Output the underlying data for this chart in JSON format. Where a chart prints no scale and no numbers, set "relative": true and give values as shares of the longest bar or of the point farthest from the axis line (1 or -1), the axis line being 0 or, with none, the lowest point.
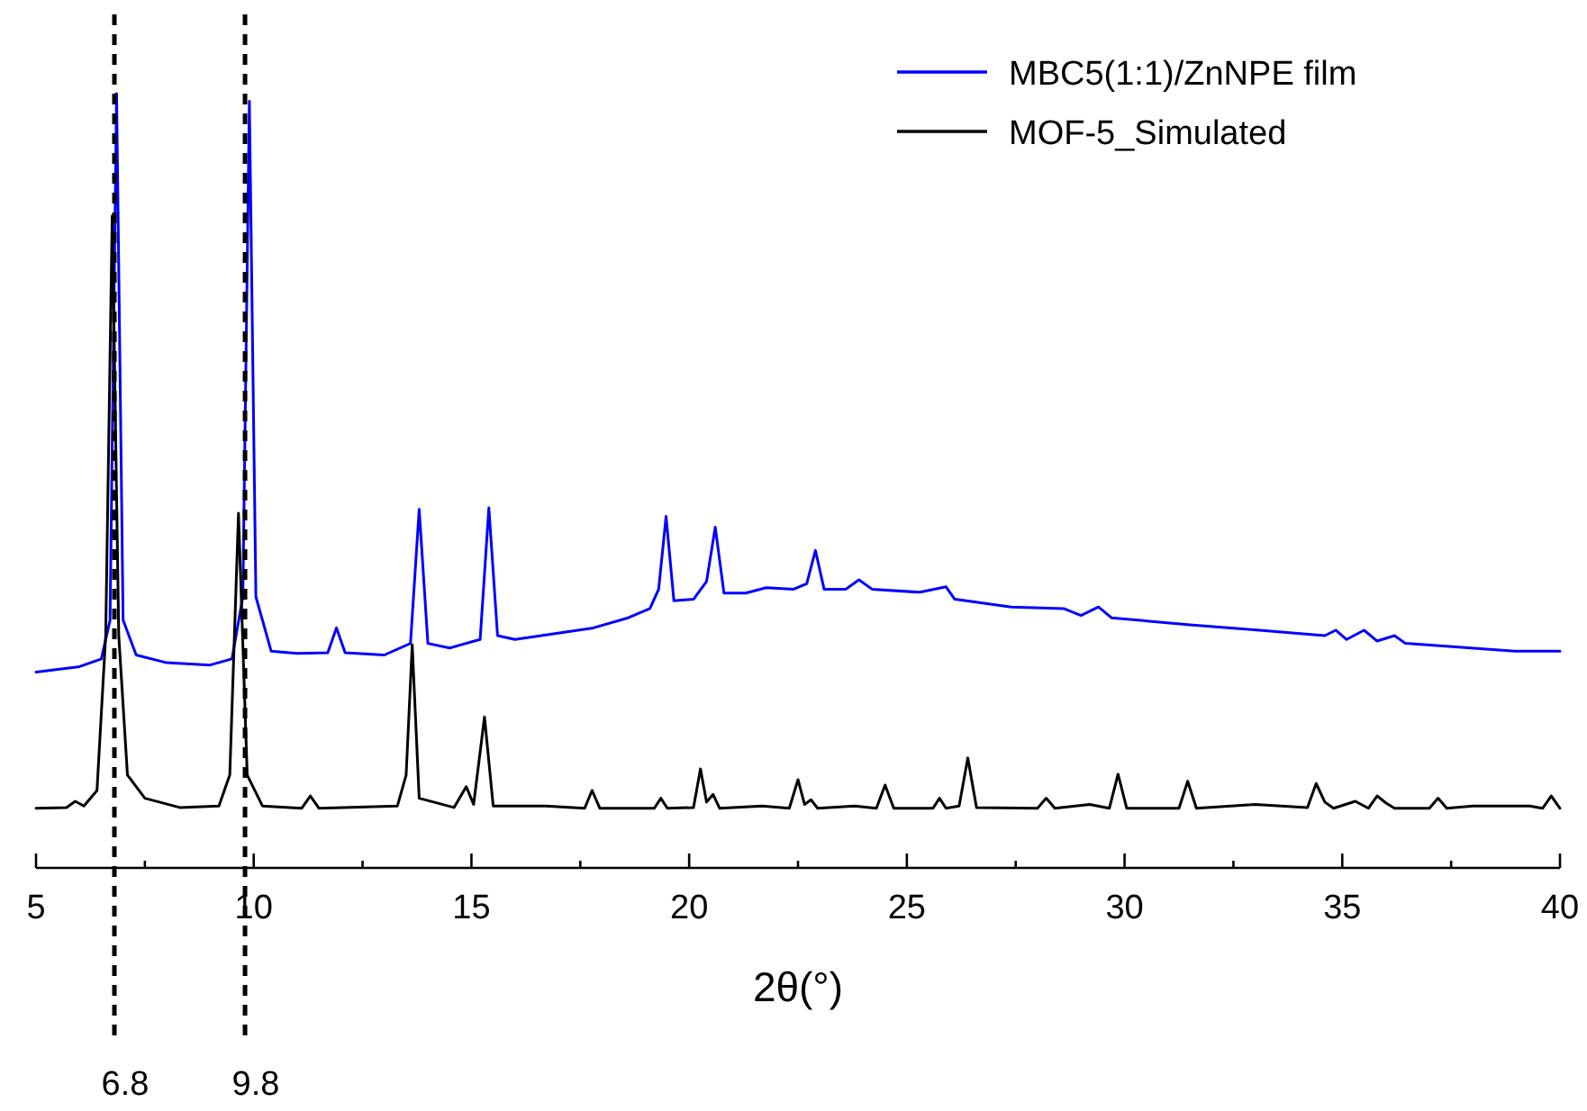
{
  "chart_data": {
    "type": "line",
    "relative": true,
    "xlabel": "2θ(°)",
    "xlim": [
      5,
      40
    ],
    "xticks": [
      5,
      {
        "value": 7.5,
        "label": null
      },
      10,
      {
        "value": 12.5,
        "label": null
      },
      15,
      {
        "value": 17.5,
        "label": null
      },
      20,
      {
        "value": 22.5,
        "label": null
      },
      25,
      {
        "value": 27.5,
        "label": null
      },
      30,
      {
        "value": 32.5,
        "label": null
      },
      35,
      {
        "value": 37.5,
        "label": null
      },
      40
    ],
    "legend": "top right",
    "grid": false,
    "line_style": "solid",
    "ref_lines": [
      {
        "axis": "x",
        "value": 6.8,
        "label": "6.8",
        "color": "#000000",
        "line_style": "dashed"
      },
      {
        "axis": "x",
        "value": 9.8,
        "label": "9.8",
        "color": "#000000",
        "line_style": "dashed"
      }
    ],
    "series": [
      {
        "name": "MBC5(1:1)/ZnNPE film",
        "color": "#0000ff",
        "x": [
          5,
          6,
          6.5,
          6.7,
          6.85,
          7.0,
          7.3,
          8,
          9,
          9.5,
          9.75,
          9.9,
          10.05,
          10.4,
          11,
          11.7,
          11.9,
          12.1,
          13,
          13.6,
          13.8,
          14.0,
          14.5,
          15.2,
          15.4,
          15.6,
          16,
          16.6,
          17.8,
          18.6,
          19.1,
          19.3,
          19.47,
          19.65,
          20.1,
          20.4,
          20.6,
          20.8,
          21.3,
          21.77,
          22.4,
          22.7,
          22.9,
          23.1,
          23.6,
          23.9,
          24.2,
          25.3,
          25.9,
          26.1,
          27.4,
          28.6,
          29.0,
          29.4,
          29.7,
          31.5,
          33.1,
          34.6,
          34.85,
          35.1,
          35.5,
          35.8,
          36.2,
          36.45,
          38.96,
          40
        ],
        "values": [
          0.253,
          0.26,
          0.27,
          0.32,
          1.0,
          0.32,
          0.275,
          0.265,
          0.262,
          0.27,
          0.35,
          0.99,
          0.35,
          0.28,
          0.277,
          0.278,
          0.31,
          0.278,
          0.275,
          0.29,
          0.463,
          0.29,
          0.284,
          0.295,
          0.465,
          0.3,
          0.295,
          0.3,
          0.31,
          0.323,
          0.335,
          0.36,
          0.454,
          0.345,
          0.347,
          0.37,
          0.44,
          0.355,
          0.355,
          0.362,
          0.36,
          0.367,
          0.41,
          0.36,
          0.36,
          0.372,
          0.36,
          0.356,
          0.363,
          0.347,
          0.337,
          0.335,
          0.326,
          0.337,
          0.323,
          0.314,
          0.307,
          0.3,
          0.307,
          0.295,
          0.307,
          0.293,
          0.3,
          0.29,
          0.28,
          0.28
        ]
      },
      {
        "name": "MOF-5_Simulated",
        "color": "#000000",
        "x": [
          5,
          5.7,
          5.9,
          6.1,
          6.4,
          6.6,
          6.75,
          6.9,
          7.1,
          7.5,
          8.3,
          9.2,
          9.45,
          9.65,
          9.85,
          10.2,
          11.1,
          11.3,
          11.5,
          13.3,
          13.5,
          13.64,
          13.8,
          14.6,
          14.88,
          15.05,
          15.3,
          15.5,
          16.7,
          17.6,
          17.77,
          17.95,
          19.2,
          19.35,
          19.5,
          20.1,
          20.26,
          20.4,
          20.55,
          20.7,
          21.68,
          22.3,
          22.5,
          22.65,
          22.8,
          22.95,
          23.8,
          24.3,
          24.5,
          24.7,
          25.6,
          25.75,
          25.9,
          26.2,
          26.4,
          26.6,
          28.0,
          28.2,
          28.4,
          29.2,
          29.65,
          29.85,
          30.05,
          31.25,
          31.45,
          31.65,
          33,
          34.2,
          34.4,
          34.6,
          34.8,
          35.3,
          35.6,
          35.8,
          36.0,
          36.2,
          37.0,
          37.2,
          37.4,
          38,
          38.5,
          39.3,
          39.6,
          39.8,
          40
        ],
        "values": [
          0.077,
          0.078,
          0.086,
          0.08,
          0.1,
          0.3,
          0.842,
          0.3,
          0.12,
          0.09,
          0.078,
          0.08,
          0.12,
          0.458,
          0.12,
          0.08,
          0.077,
          0.093,
          0.077,
          0.08,
          0.12,
          0.288,
          0.09,
          0.078,
          0.105,
          0.082,
          0.195,
          0.08,
          0.08,
          0.077,
          0.1,
          0.077,
          0.077,
          0.09,
          0.077,
          0.078,
          0.128,
          0.085,
          0.095,
          0.077,
          0.08,
          0.077,
          0.114,
          0.082,
          0.088,
          0.077,
          0.08,
          0.077,
          0.107,
          0.077,
          0.077,
          0.09,
          0.077,
          0.08,
          0.142,
          0.078,
          0.077,
          0.09,
          0.077,
          0.082,
          0.077,
          0.121,
          0.077,
          0.077,
          0.112,
          0.077,
          0.082,
          0.078,
          0.109,
          0.085,
          0.077,
          0.086,
          0.077,
          0.093,
          0.084,
          0.077,
          0.077,
          0.09,
          0.077,
          0.08,
          0.08,
          0.08,
          0.077,
          0.093,
          0.077
        ]
      }
    ]
  }
}
